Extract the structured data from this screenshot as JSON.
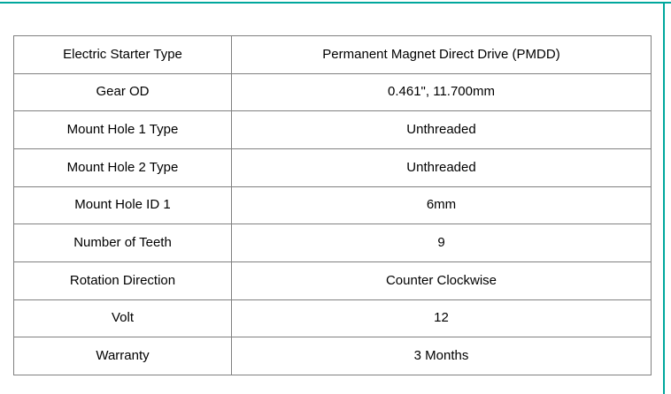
{
  "colors": {
    "accent": "#00a79d",
    "table_border": "#808080",
    "text": "#000000",
    "page_background": "#ffffff"
  },
  "spec_table": {
    "rows": [
      {
        "label": "Electric Starter Type",
        "value": "Permanent Magnet Direct Drive (PMDD)"
      },
      {
        "label": "Gear OD",
        "value": "0.461\", 11.700mm"
      },
      {
        "label": "Mount Hole 1 Type",
        "value": "Unthreaded"
      },
      {
        "label": "Mount Hole 2 Type",
        "value": "Unthreaded"
      },
      {
        "label": "Mount Hole ID 1",
        "value": "6mm"
      },
      {
        "label": "Number of Teeth",
        "value": "9"
      },
      {
        "label": "Rotation Direction",
        "value": "Counter Clockwise"
      },
      {
        "label": "Volt",
        "value": "12"
      },
      {
        "label": "Warranty",
        "value": "3 Months"
      }
    ]
  }
}
